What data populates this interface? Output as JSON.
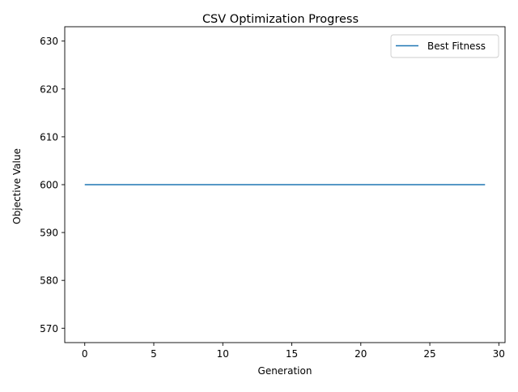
{
  "chart_data": {
    "type": "line",
    "title": "CSV Optimization Progress",
    "xlabel": "Generation",
    "ylabel": "Objective Value",
    "xlim": [
      -1.45,
      30.45
    ],
    "ylim": [
      567,
      633
    ],
    "x_ticks": [
      0,
      5,
      10,
      15,
      20,
      25,
      30
    ],
    "y_ticks": [
      570,
      580,
      590,
      600,
      610,
      620,
      630
    ],
    "grid": false,
    "legend_position": "top-right",
    "series": [
      {
        "name": "Best Fitness",
        "color": "#1f77b4",
        "x": [
          0,
          1,
          2,
          3,
          4,
          5,
          6,
          7,
          8,
          9,
          10,
          11,
          12,
          13,
          14,
          15,
          16,
          17,
          18,
          19,
          20,
          21,
          22,
          23,
          24,
          25,
          26,
          27,
          28,
          29
        ],
        "y": [
          600,
          600,
          600,
          600,
          600,
          600,
          600,
          600,
          600,
          600,
          600,
          600,
          600,
          600,
          600,
          600,
          600,
          600,
          600,
          600,
          600,
          600,
          600,
          600,
          600,
          600,
          600,
          600,
          600,
          600
        ]
      }
    ]
  }
}
